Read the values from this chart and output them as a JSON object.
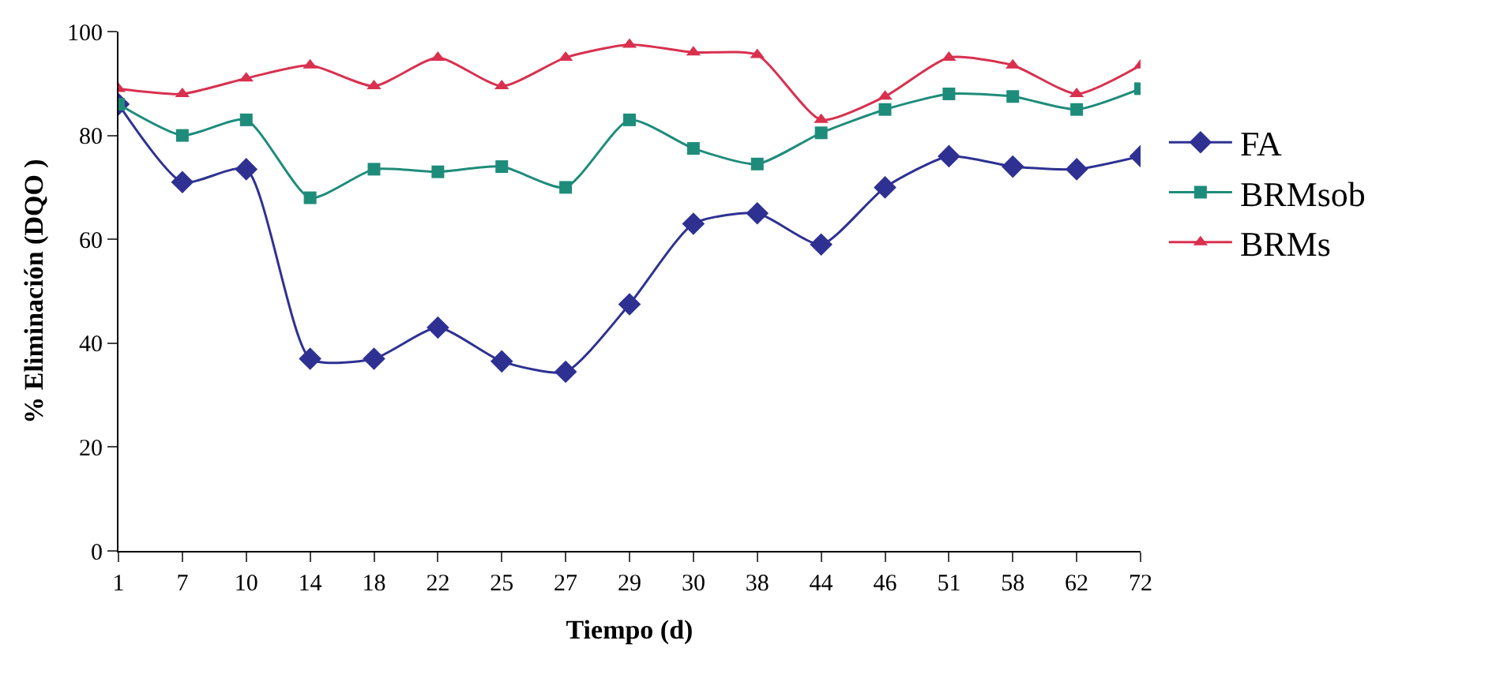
{
  "chart_data": {
    "type": "line",
    "xlabel": "Tiempo (d)",
    "ylabel": "% Eliminación (DQO )",
    "categories": [
      "1",
      "7",
      "10",
      "14",
      "18",
      "22",
      "25",
      "27",
      "29",
      "30",
      "38",
      "44",
      "46",
      "51",
      "58",
      "62",
      "72"
    ],
    "series": [
      {
        "name": "FA",
        "color": "#2e3192",
        "marker": "diamond",
        "values": [
          86,
          71,
          73.5,
          37,
          37,
          43,
          36.5,
          34.5,
          47.5,
          63,
          65,
          59,
          70,
          76,
          74,
          73.5,
          76
        ]
      },
      {
        "name": "BRMsob",
        "color": "#1e8c7a",
        "marker": "square",
        "values": [
          86,
          80,
          83,
          68,
          73.5,
          73,
          74,
          70,
          83,
          77.5,
          74.5,
          80.5,
          85,
          88,
          87.5,
          85,
          89
        ]
      },
      {
        "name": "BRMs",
        "color": "#d9304f",
        "marker": "triangle",
        "values": [
          89,
          88,
          91,
          93.5,
          89.5,
          95,
          89.5,
          95,
          97.5,
          96,
          95.5,
          83,
          87.5,
          95,
          93.5,
          88,
          93.5
        ]
      }
    ],
    "ylim": [
      0,
      100
    ],
    "yticks": [
      0,
      20,
      40,
      60,
      80,
      100
    ],
    "grid": false,
    "legend": "right"
  }
}
